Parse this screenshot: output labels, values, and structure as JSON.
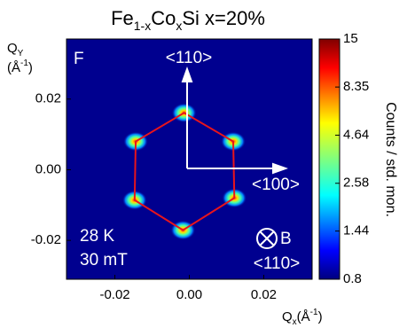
{
  "chart_data": {
    "type": "scatter",
    "title": [
      "Fe",
      "1-x",
      "Co",
      "x",
      "Si x=20%"
    ],
    "x_label": [
      "Q",
      "x",
      "(Å",
      "-1",
      ")"
    ],
    "y_label": [
      "Q",
      "Y",
      "(Å",
      "-1",
      ")"
    ],
    "colorbar_label": "Counts / std. mon.",
    "x": [
      -0.0014,
      0.0118,
      0.0121,
      -0.0017,
      -0.0147,
      -0.0144
    ],
    "y": [
      0.0161,
      0.008,
      -0.008,
      -0.0171,
      -0.0086,
      0.008
    ],
    "color": "#ff2a10",
    "line_color": "#e8141c",
    "xlim": [
      -0.033,
      0.033
    ],
    "ylim": [
      -0.031,
      0.037
    ],
    "xticks": [
      {
        "value": -0.02,
        "label": "-0.02"
      },
      {
        "value": 0,
        "label": "0.00"
      },
      {
        "value": 0.02,
        "label": "0.02"
      }
    ],
    "yticks": [
      {
        "value": -0.02,
        "label": "-0.02"
      },
      {
        "value": 0,
        "label": "0.00"
      },
      {
        "value": 0.02,
        "label": "0.02"
      }
    ],
    "clim": [
      0.8,
      15
    ],
    "cticks": [
      0.8,
      1.44,
      2.58,
      4.64,
      8.35,
      15
    ],
    "clog": true,
    "annotations": [
      "F",
      "<110>",
      "<100>",
      "28 K",
      "30 mT",
      "B",
      "<110>"
    ]
  }
}
